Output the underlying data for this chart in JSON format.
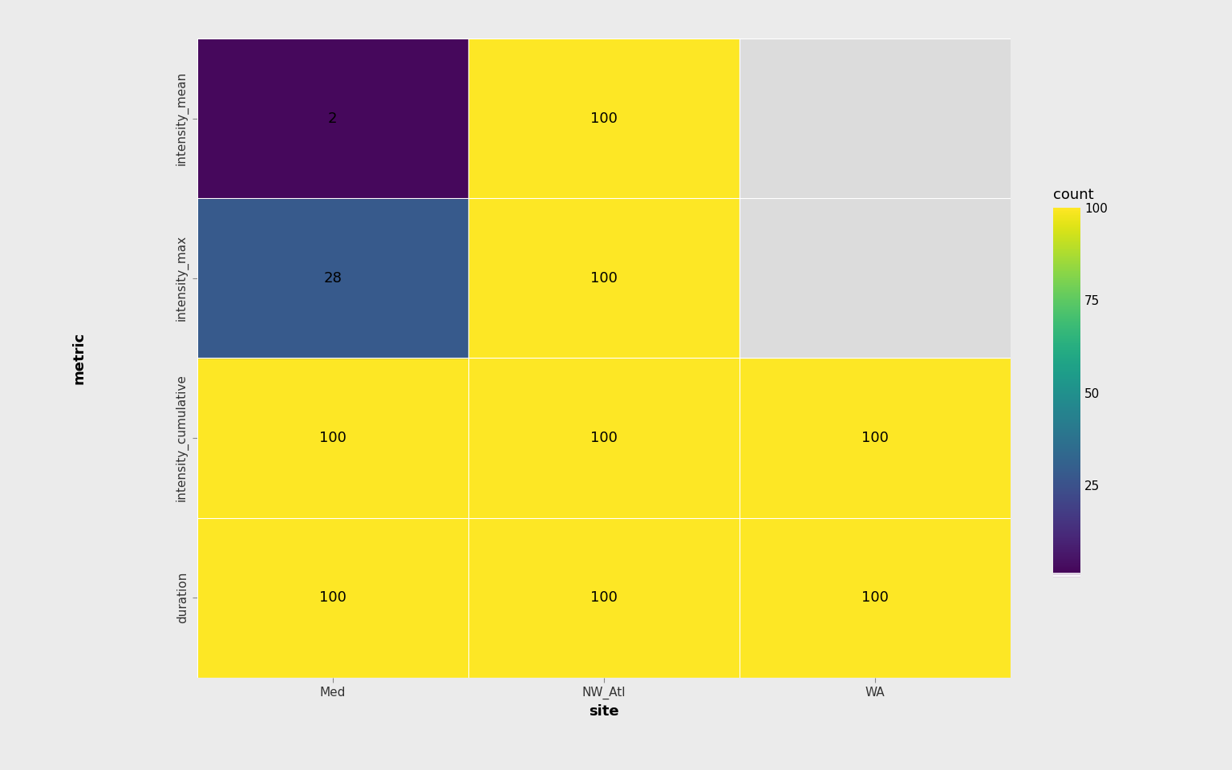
{
  "sites": [
    "Med",
    "NW_Atl",
    "WA"
  ],
  "metrics": [
    "duration",
    "intensity_cumulative",
    "intensity_max",
    "intensity_mean"
  ],
  "values": [
    [
      100,
      100,
      100
    ],
    [
      100,
      100,
      100
    ],
    [
      28,
      100,
      null
    ],
    [
      2,
      100,
      null
    ]
  ],
  "colormap": "viridis",
  "vmin": 0,
  "vmax": 100,
  "background_color": "#ebebeb",
  "panel_background": "#ebebeb",
  "na_color": "#dcdcdc",
  "xlabel": "site",
  "ylabel": "metric",
  "colorbar_label": "count",
  "colorbar_ticks": [
    25,
    50,
    75,
    100
  ],
  "label_fontsize": 13,
  "tick_fontsize": 11,
  "annotation_fontsize": 13,
  "ylabel_fontsize": 13,
  "colorbar_title_fontsize": 13,
  "colorbar_tick_fontsize": 11
}
